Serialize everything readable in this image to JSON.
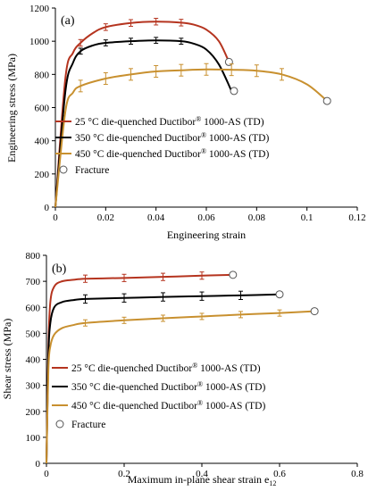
{
  "colors": {
    "c25": "#b5341f",
    "c350": "#000000",
    "c450": "#c8902f"
  },
  "chart_data": [
    {
      "type": "line",
      "panel": "(a)",
      "xlabel": "Engineering strain",
      "ylabel": "Engineering stress (MPa)",
      "xlim": [
        0,
        0.12
      ],
      "ylim": [
        0,
        1200
      ],
      "xticks": [
        "0",
        "0.02",
        "0.04",
        "0.06",
        "0.08",
        "0.1",
        "0.12"
      ],
      "yticks": [
        "0",
        "200",
        "400",
        "600",
        "800",
        "1000",
        "1200"
      ],
      "legend_position": "center-left",
      "legend": [
        {
          "prefix": "25 °C die-quenched Ductibor",
          "sup": "®",
          "suffix": " 1000-AS (TD)",
          "color": "c25",
          "kind": "line"
        },
        {
          "prefix": "350 °C die-quenched Ductibor",
          "sup": "®",
          "suffix": " 1000-AS (TD)",
          "color": "c350",
          "kind": "line"
        },
        {
          "prefix": "450 °C die-quenched Ductibor",
          "sup": "®",
          "suffix": " 1000-AS (TD)",
          "color": "c450",
          "kind": "line"
        },
        {
          "prefix": "Fracture",
          "sup": "",
          "suffix": "",
          "color": "c350",
          "kind": "marker"
        }
      ],
      "series": [
        {
          "name": "25 °C die-quenched Ductibor® 1000-AS (TD)",
          "color": "c25",
          "x": [
            0,
            0.004,
            0.007,
            0.01,
            0.015,
            0.02,
            0.03,
            0.04,
            0.05,
            0.055,
            0.06,
            0.065,
            0.069
          ],
          "y": [
            0,
            780,
            930,
            990,
            1050,
            1085,
            1110,
            1118,
            1112,
            1100,
            1070,
            1000,
            875
          ],
          "err_x": [
            0.01,
            0.02,
            0.03,
            0.04,
            0.05
          ],
          "err_y": [
            990,
            1085,
            1110,
            1118,
            1112
          ],
          "err": 20,
          "fracture": [
            0.069,
            875
          ]
        },
        {
          "name": "350 °C die-quenched Ductibor® 1000-AS (TD)",
          "color": "c350",
          "x": [
            0,
            0.004,
            0.007,
            0.01,
            0.015,
            0.02,
            0.03,
            0.04,
            0.05,
            0.055,
            0.06,
            0.065,
            0.07
          ],
          "y": [
            0,
            700,
            870,
            940,
            975,
            990,
            1000,
            1005,
            1000,
            985,
            950,
            860,
            700
          ],
          "err_x": [
            0.01,
            0.02,
            0.03,
            0.04,
            0.05
          ],
          "err_y": [
            940,
            990,
            1000,
            1005,
            1000
          ],
          "err": 18,
          "fracture": [
            0.071,
            700
          ]
        },
        {
          "name": "450 °C die-quenched Ductibor® 1000-AS (TD)",
          "color": "c450",
          "x": [
            0,
            0.004,
            0.007,
            0.01,
            0.02,
            0.03,
            0.04,
            0.05,
            0.06,
            0.07,
            0.08,
            0.09,
            0.1,
            0.108
          ],
          "y": [
            0,
            580,
            690,
            730,
            775,
            800,
            818,
            825,
            830,
            828,
            822,
            800,
            740,
            640
          ],
          "err_x": [
            0.01,
            0.02,
            0.03,
            0.04,
            0.05,
            0.06,
            0.07,
            0.08,
            0.09
          ],
          "err_y": [
            730,
            775,
            800,
            818,
            825,
            830,
            828,
            822,
            800
          ],
          "err": 35,
          "fracture": [
            0.108,
            640
          ]
        }
      ]
    },
    {
      "type": "line",
      "panel": "(b)",
      "xlabel": "Maximum in-plane shear strain e",
      "xlabel_sub": "12",
      "ylabel": "Shear stress (MPa)",
      "xlim": [
        0,
        0.8
      ],
      "ylim": [
        0,
        800
      ],
      "xticks": [
        "0",
        "0.2",
        "0.4",
        "0.6",
        "0.8"
      ],
      "yticks": [
        "0",
        "100",
        "200",
        "300",
        "400",
        "500",
        "600",
        "700",
        "800"
      ],
      "legend_position": "lower-left",
      "legend": [
        {
          "prefix": "25 °C die-quenched Ductibor",
          "sup": "®",
          "suffix": " 1000-AS (TD)",
          "color": "c25",
          "kind": "line"
        },
        {
          "prefix": "350 °C die-quenched Ductibor",
          "sup": "®",
          "suffix": " 1000-AS (TD)",
          "color": "c350",
          "kind": "line"
        },
        {
          "prefix": "450 °C die-quenched Ductibor",
          "sup": "®",
          "suffix": " 1000-AS (TD)",
          "color": "c450",
          "kind": "line"
        },
        {
          "prefix": "Fracture",
          "sup": "",
          "suffix": "",
          "color": "c350",
          "kind": "marker"
        }
      ],
      "series": [
        {
          "name": "25 °C die-quenched Ductibor® 1000-AS (TD)",
          "color": "c25",
          "x": [
            0,
            0.005,
            0.01,
            0.02,
            0.04,
            0.07,
            0.1,
            0.2,
            0.3,
            0.4,
            0.48
          ],
          "y": [
            0,
            450,
            620,
            680,
            700,
            706,
            710,
            713,
            717,
            722,
            725
          ],
          "err_x": [
            0.1,
            0.2,
            0.3,
            0.4
          ],
          "err_y": [
            710,
            713,
            717,
            722
          ],
          "err": 14,
          "fracture": [
            0.48,
            725
          ]
        },
        {
          "name": "350 °C die-quenched Ductibor® 1000-AS (TD)",
          "color": "c350",
          "x": [
            0,
            0.005,
            0.01,
            0.02,
            0.04,
            0.07,
            0.1,
            0.2,
            0.3,
            0.4,
            0.5,
            0.6
          ],
          "y": [
            0,
            410,
            540,
            600,
            620,
            628,
            632,
            636,
            640,
            643,
            646,
            650
          ],
          "err_x": [
            0.1,
            0.2,
            0.3,
            0.4,
            0.5
          ],
          "err_y": [
            632,
            636,
            640,
            643,
            646
          ],
          "err": 16,
          "fracture": [
            0.6,
            650
          ]
        },
        {
          "name": "450 °C die-quenched Ductibor® 1000-AS (TD)",
          "color": "c450",
          "x": [
            0,
            0.005,
            0.01,
            0.02,
            0.04,
            0.07,
            0.1,
            0.2,
            0.3,
            0.4,
            0.5,
            0.6,
            0.69
          ],
          "y": [
            0,
            360,
            450,
            495,
            520,
            532,
            540,
            550,
            558,
            565,
            572,
            578,
            585
          ],
          "err_x": [
            0.1,
            0.2,
            0.3,
            0.4,
            0.5,
            0.6
          ],
          "err_y": [
            540,
            550,
            558,
            565,
            572,
            578
          ],
          "err": 12,
          "fracture": [
            0.69,
            585
          ]
        }
      ]
    }
  ]
}
